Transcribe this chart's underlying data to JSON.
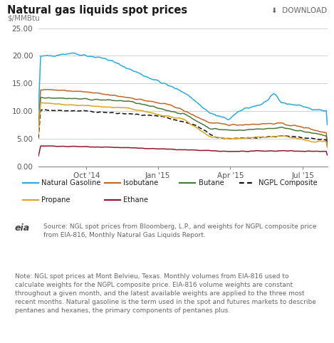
{
  "title": "Natural gas liquids spot prices",
  "ylabel": "$/MMBtu",
  "download_text": "⬇  DOWNLOAD",
  "ylim": [
    0.0,
    27.0
  ],
  "yticks": [
    0.0,
    5.0,
    10.0,
    15.0,
    20.0,
    25.0
  ],
  "xtick_labels": [
    "Oct '14",
    "Jan '15",
    "Apr '15",
    "Jul '15"
  ],
  "legend_entries": [
    {
      "label": "Natural Gasoline",
      "color": "#29ABE2",
      "linestyle": "solid"
    },
    {
      "label": "Isobutane",
      "color": "#C0692A",
      "linestyle": "solid"
    },
    {
      "label": "Butane",
      "color": "#4A7A3A",
      "linestyle": "solid"
    },
    {
      "label": "NGPL Composite",
      "color": "#111111",
      "linestyle": "dashed"
    },
    {
      "label": "Propane",
      "color": "#DAA520",
      "linestyle": "solid"
    },
    {
      "label": "Ethane",
      "color": "#8B1A2A",
      "linestyle": "solid"
    }
  ],
  "source_text": "Source: NGL spot prices from Bloomberg, L.P., and weights for NGPL composite price\nfrom EIA-816, Monthly Natural Gas Liquids Report.",
  "note_text": "Note: NGL spot prices at Mont Belvieu, Texas. Monthly volumes from EIA-816 used to\ncalculate weights for the NGPL composite price. EIA-816 volume weights are constant\nthroughout a given month, and the latest available weights are applied to the three most\nrecent months. Natural gasoline is the term used in the spot and futures markets to describe\npentanes and hexanes, the primary components of pentanes plus.",
  "bg_color": "#FFFFFF",
  "grid_color": "#CCCCCC",
  "legend_bg": "#EBEBEB"
}
